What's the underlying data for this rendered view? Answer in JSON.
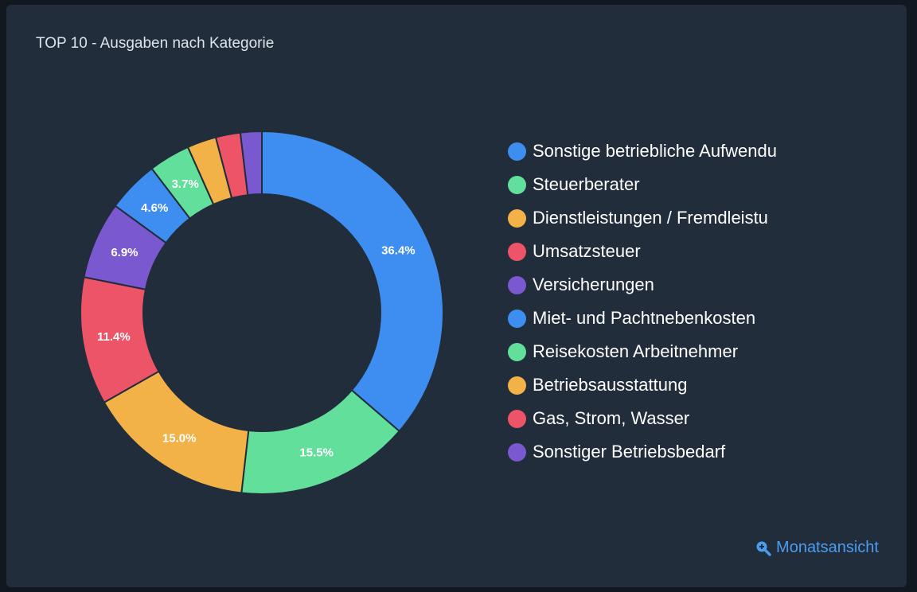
{
  "card": {
    "title": "TOP 10 - Ausgaben nach Kategorie",
    "link_label": "Monatsansicht",
    "link_icon": "zoom-in-icon"
  },
  "colors": {
    "blue": "#3d8ef0",
    "green": "#62df9a",
    "orange": "#f2b247",
    "red": "#ee5467",
    "purple": "#7a58cf",
    "link": "#4a9cf0"
  },
  "chart_data": {
    "type": "pie",
    "variant": "donut",
    "title": "TOP 10 - Ausgaben nach Kategorie",
    "legend_position": "right",
    "categories": [
      "Sonstige betriebliche Aufwendu",
      "Steuerberater",
      "Dienstleistungen / Fremdleistu",
      "Umsatzsteuer",
      "Versicherungen",
      "Miet- und Pachtnebenkosten",
      "Reisekosten Arbeitnehmer",
      "Betriebsausstattung",
      "Gas, Strom, Wasser",
      "Sonstiger Betriebsbedarf"
    ],
    "values": [
      36.4,
      15.5,
      15.0,
      11.4,
      6.9,
      4.6,
      3.7,
      2.6,
      2.2,
      1.9
    ],
    "labels": [
      "36.4%",
      "15.5%",
      "15.0%",
      "11.4%",
      "6.9%",
      "4.6%",
      "3.7%",
      "",
      "",
      ""
    ],
    "colors": [
      "#3d8ef0",
      "#62df9a",
      "#f2b247",
      "#ee5467",
      "#7a58cf",
      "#3d8ef0",
      "#62df9a",
      "#f2b247",
      "#ee5467",
      "#7a58cf"
    ]
  }
}
